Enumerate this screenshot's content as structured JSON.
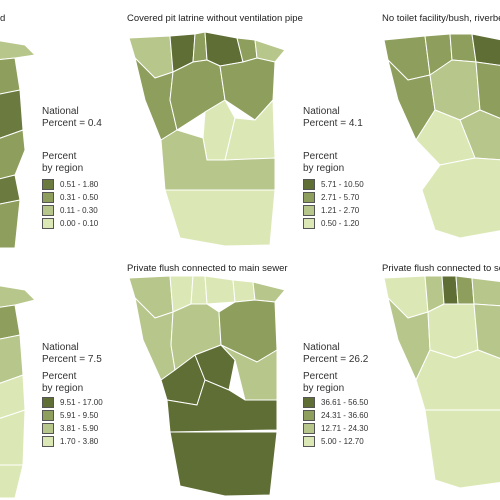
{
  "panels": [
    {
      "title": "d",
      "national_label": "National",
      "national_value": "Percent = 0.4",
      "legend_title_1": "Percent",
      "legend_title_2": "by region",
      "legend": [
        {
          "label": "0.51 - 1.80",
          "color": "#6b7a3f"
        },
        {
          "label": "0.31 - 0.50",
          "color": "#8e9e5c"
        },
        {
          "label": "0.11 - 0.30",
          "color": "#b7c68a"
        },
        {
          "label": "0.00 - 0.10",
          "color": "#dbe8b6"
        }
      ]
    },
    {
      "title": "Covered pit latrine without ventilation pipe",
      "national_label": "National",
      "national_value": "Percent = 4.1",
      "legend_title_1": "Percent",
      "legend_title_2": "by region",
      "legend": [
        {
          "label": "5.71 - 10.50",
          "color": "#5f6e35"
        },
        {
          "label": "2.71 - 5.70",
          "color": "#8e9e5c"
        },
        {
          "label": "1.21 - 2.70",
          "color": "#b7c68a"
        },
        {
          "label": "0.50 - 1.20",
          "color": "#dbe8b6"
        }
      ]
    },
    {
      "title": "No toilet facility/bush, riverbe",
      "national_label": "",
      "national_value": "",
      "legend_title_1": "",
      "legend_title_2": "",
      "legend": []
    },
    {
      "title": "",
      "national_label": "National",
      "national_value": "Percent = 7.5",
      "legend_title_1": "Percent",
      "legend_title_2": "by region",
      "legend": [
        {
          "label": "9.51 - 17.00",
          "color": "#5f6e35"
        },
        {
          "label": "5.91 - 9.50",
          "color": "#8e9e5c"
        },
        {
          "label": "3.81 - 5.90",
          "color": "#b7c68a"
        },
        {
          "label": "1.70 - 3.80",
          "color": "#dbe8b6"
        }
      ]
    },
    {
      "title": "Private flush connected to main sewer",
      "national_label": "National",
      "national_value": "Percent = 26.2",
      "legend_title_1": "Percent",
      "legend_title_2": "by region",
      "legend": [
        {
          "label": "36.61 - 56.50",
          "color": "#5f6e35"
        },
        {
          "label": "24.31 - 36.60",
          "color": "#8e9e5c"
        },
        {
          "label": "12.71 - 24.30",
          "color": "#b7c68a"
        },
        {
          "label": "5.00 - 12.70",
          "color": "#dbe8b6"
        }
      ]
    },
    {
      "title": "Private flush connected to se",
      "national_label": "",
      "national_value": "",
      "legend_title_1": "",
      "legend_title_2": "",
      "legend": []
    }
  ],
  "colors": {
    "c1": "#5f6e35",
    "c2": "#8e9e5c",
    "c3": "#b7c68a",
    "c4": "#dbe8b6",
    "border": "#ffffff"
  }
}
